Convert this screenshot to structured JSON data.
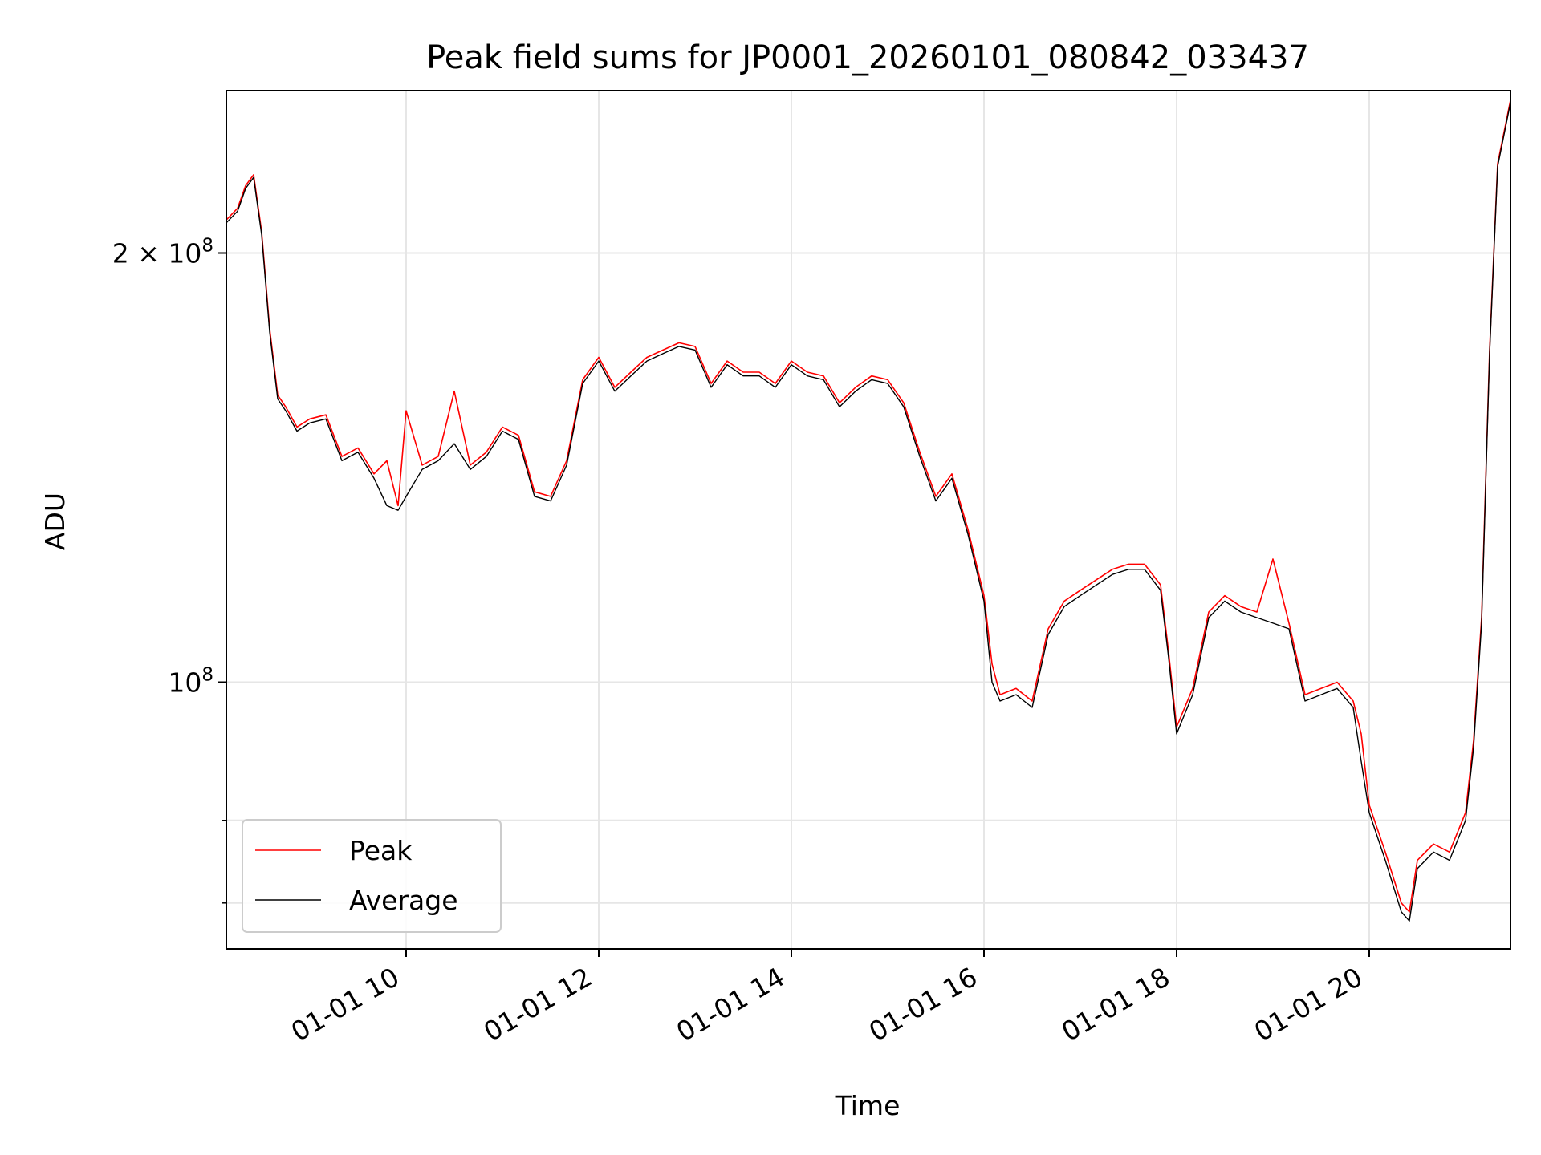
{
  "chart_data": {
    "type": "line",
    "title": "Peak field sums for JP0001_20260101_080842_033437",
    "xlabel": "Time",
    "ylabel": "ADU",
    "yscale": "log",
    "grid": true,
    "legend_position": "lower-left",
    "xlim": [
      "2026-01-01T08:08",
      "2026-01-01T21:28"
    ],
    "ylim": [
      65000000,
      260000000
    ],
    "x_ticks": [
      "01-01 10",
      "01-01 12",
      "01-01 14",
      "01-01 16",
      "01-01 18",
      "01-01 20"
    ],
    "x_tick_values": [
      "2026-01-01T10:00",
      "2026-01-01T12:00",
      "2026-01-01T14:00",
      "2026-01-01T16:00",
      "2026-01-01T18:00",
      "2026-01-01T20:00"
    ],
    "y_ticks_major": [
      {
        "value": 100000000,
        "base": "10",
        "exp": "8"
      },
      {
        "value": 200000000,
        "base": "2 × 10",
        "exp": "8"
      }
    ],
    "y_ticks_minor": [
      70000000,
      80000000,
      300000000
    ],
    "x": [
      "08:08",
      "08:15",
      "08:20",
      "08:25",
      "08:30",
      "08:35",
      "08:40",
      "08:45",
      "08:52",
      "09:00",
      "09:10",
      "09:20",
      "09:30",
      "09:40",
      "09:48",
      "09:55",
      "10:00",
      "10:10",
      "10:20",
      "10:30",
      "10:40",
      "10:50",
      "11:00",
      "11:10",
      "11:20",
      "11:30",
      "11:40",
      "11:50",
      "12:00",
      "12:10",
      "12:20",
      "12:30",
      "12:40",
      "12:50",
      "13:00",
      "13:10",
      "13:20",
      "13:30",
      "13:40",
      "13:50",
      "14:00",
      "14:10",
      "14:20",
      "14:30",
      "14:40",
      "14:50",
      "15:00",
      "15:10",
      "15:20",
      "15:30",
      "15:40",
      "15:50",
      "16:00",
      "16:05",
      "16:10",
      "16:20",
      "16:30",
      "16:40",
      "16:50",
      "17:00",
      "17:10",
      "17:20",
      "17:30",
      "17:40",
      "17:50",
      "17:55",
      "18:00",
      "18:10",
      "18:20",
      "18:30",
      "18:40",
      "18:50",
      "19:00",
      "19:10",
      "19:20",
      "19:30",
      "19:40",
      "19:50",
      "19:55",
      "20:00",
      "20:10",
      "20:20",
      "20:25",
      "20:30",
      "20:40",
      "20:50",
      "21:00",
      "21:05",
      "21:10",
      "21:15",
      "21:20",
      "21:28"
    ],
    "series": [
      {
        "name": "Average",
        "color": "#000000",
        "values": [
          210000000,
          214000000,
          222000000,
          226000000,
          206000000,
          176000000,
          158000000,
          155000000,
          150000000,
          152000000,
          153000000,
          143000000,
          145000000,
          139000000,
          133000000,
          132000000,
          135000000,
          141000000,
          143000000,
          147000000,
          141000000,
          144000000,
          150000000,
          148000000,
          135000000,
          134000000,
          142000000,
          162000000,
          168000000,
          160000000,
          164000000,
          168000000,
          170000000,
          172000000,
          171000000,
          161000000,
          167000000,
          164000000,
          164000000,
          161000000,
          167000000,
          164000000,
          163000000,
          156000000,
          160000000,
          163000000,
          162000000,
          156000000,
          144000000,
          134000000,
          139000000,
          127000000,
          114000000,
          100000000,
          97000000,
          98000000,
          96000000,
          108000000,
          113000000,
          115000000,
          117000000,
          119000000,
          120000000,
          120000000,
          116000000,
          104000000,
          92000000,
          98000000,
          111000000,
          114000000,
          112000000,
          111000000,
          110000000,
          109000000,
          97000000,
          98000000,
          99000000,
          96000000,
          88000000,
          81000000,
          75000000,
          69000000,
          68000000,
          74000000,
          76000000,
          75000000,
          80000000,
          90000000,
          110000000,
          170000000,
          230000000,
          255000000
        ]
      },
      {
        "name": "Peak",
        "color": "#ff0000",
        "values": [
          211000000,
          215000000,
          223000000,
          227000000,
          207000000,
          177000000,
          159000000,
          156000000,
          151000000,
          153000000,
          154000000,
          144000000,
          146000000,
          140000000,
          143000000,
          133000000,
          155000000,
          142000000,
          144000000,
          160000000,
          142000000,
          145000000,
          151000000,
          149000000,
          136000000,
          135000000,
          143000000,
          163000000,
          169000000,
          161000000,
          165000000,
          169000000,
          171000000,
          173000000,
          172000000,
          162000000,
          168000000,
          165000000,
          165000000,
          162000000,
          168000000,
          165000000,
          164000000,
          157000000,
          161000000,
          164000000,
          163000000,
          157000000,
          145000000,
          135000000,
          140000000,
          128000000,
          115000000,
          103000000,
          98000000,
          99000000,
          97000000,
          109000000,
          114000000,
          116000000,
          118000000,
          120000000,
          121000000,
          121000000,
          117000000,
          105000000,
          93000000,
          99000000,
          112000000,
          115000000,
          113000000,
          112000000,
          122000000,
          110000000,
          98000000,
          99000000,
          100000000,
          97000000,
          92000000,
          82000000,
          76000000,
          70000000,
          69000000,
          75000000,
          77000000,
          76000000,
          81000000,
          91000000,
          111000000,
          171000000,
          231000000,
          256000000
        ]
      }
    ]
  }
}
